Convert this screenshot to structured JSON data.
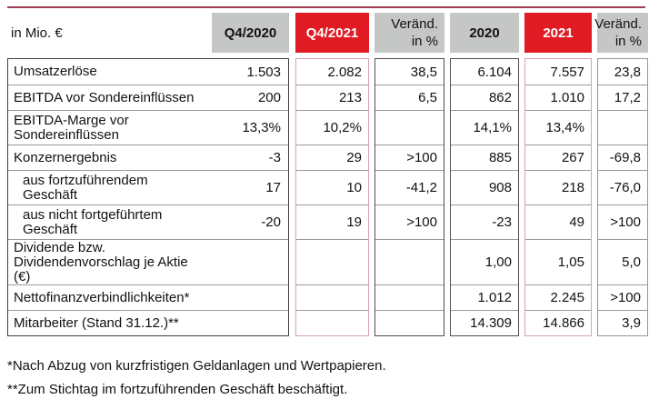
{
  "table": {
    "unit_label": "in Mio. €",
    "columns": [
      {
        "label": "Q4/2020",
        "style": "gray"
      },
      {
        "label": "Q4/2021",
        "style": "red"
      },
      {
        "label": "Veränd.\nin %",
        "style": "gray"
      },
      {
        "label": "2020",
        "style": "gray"
      },
      {
        "label": "2021",
        "style": "red"
      },
      {
        "label": "Veränd.\nin %",
        "style": "gray"
      }
    ],
    "rows": [
      {
        "label": "Umsatzerlöse",
        "indent": false,
        "values": [
          "1.503",
          "2.082",
          "38,5",
          "6.104",
          "7.557",
          "23,8"
        ]
      },
      {
        "label": "EBITDA vor Sondereinflüssen",
        "indent": false,
        "values": [
          "200",
          "213",
          "6,5",
          "862",
          "1.010",
          "17,2"
        ]
      },
      {
        "label": "EBITDA-Marge vor\nSondereinflüssen",
        "indent": false,
        "values": [
          "13,3%",
          "10,2%",
          "",
          "14,1%",
          "13,4%",
          ""
        ]
      },
      {
        "label": "Konzernergebnis",
        "indent": false,
        "values": [
          "-3",
          "29",
          ">100",
          "885",
          "267",
          "-69,8"
        ]
      },
      {
        "label": "aus fortzuführendem\nGeschäft",
        "indent": true,
        "values": [
          "17",
          "10",
          "-41,2",
          "908",
          "218",
          "-76,0"
        ]
      },
      {
        "label": "aus nicht fortgeführtem\nGeschäft",
        "indent": true,
        "values": [
          "-20",
          "19",
          ">100",
          "-23",
          "49",
          ">100"
        ]
      },
      {
        "label": "Dividende bzw.\nDividendenvorschlag je Aktie\n(€)",
        "indent": false,
        "values": [
          "",
          "",
          "",
          "1,00",
          "1,05",
          "5,0"
        ]
      },
      {
        "label": "Nettofinanzverbindlichkeiten*",
        "indent": false,
        "values": [
          "",
          "",
          "",
          "1.012",
          "2.245",
          ">100"
        ]
      },
      {
        "label": "Mitarbeiter (Stand 31.12.)**",
        "indent": false,
        "values": [
          "",
          "",
          "",
          "14.309",
          "14.866",
          "3,9"
        ]
      }
    ]
  },
  "footnotes": [
    "*Nach Abzug von kurzfristigen Geldanlagen und Wertpapieren.",
    "**Zum Stichtag im fortzuführenden Geschäft beschäftigt."
  ],
  "colors": {
    "header_red": "#e01b23",
    "header_gray": "#c5c6c6",
    "accent_rule": "#a13b52",
    "red_column_border": "#d9a3ab",
    "dark_column_border": "#4f4f4f",
    "text": "#111111"
  }
}
